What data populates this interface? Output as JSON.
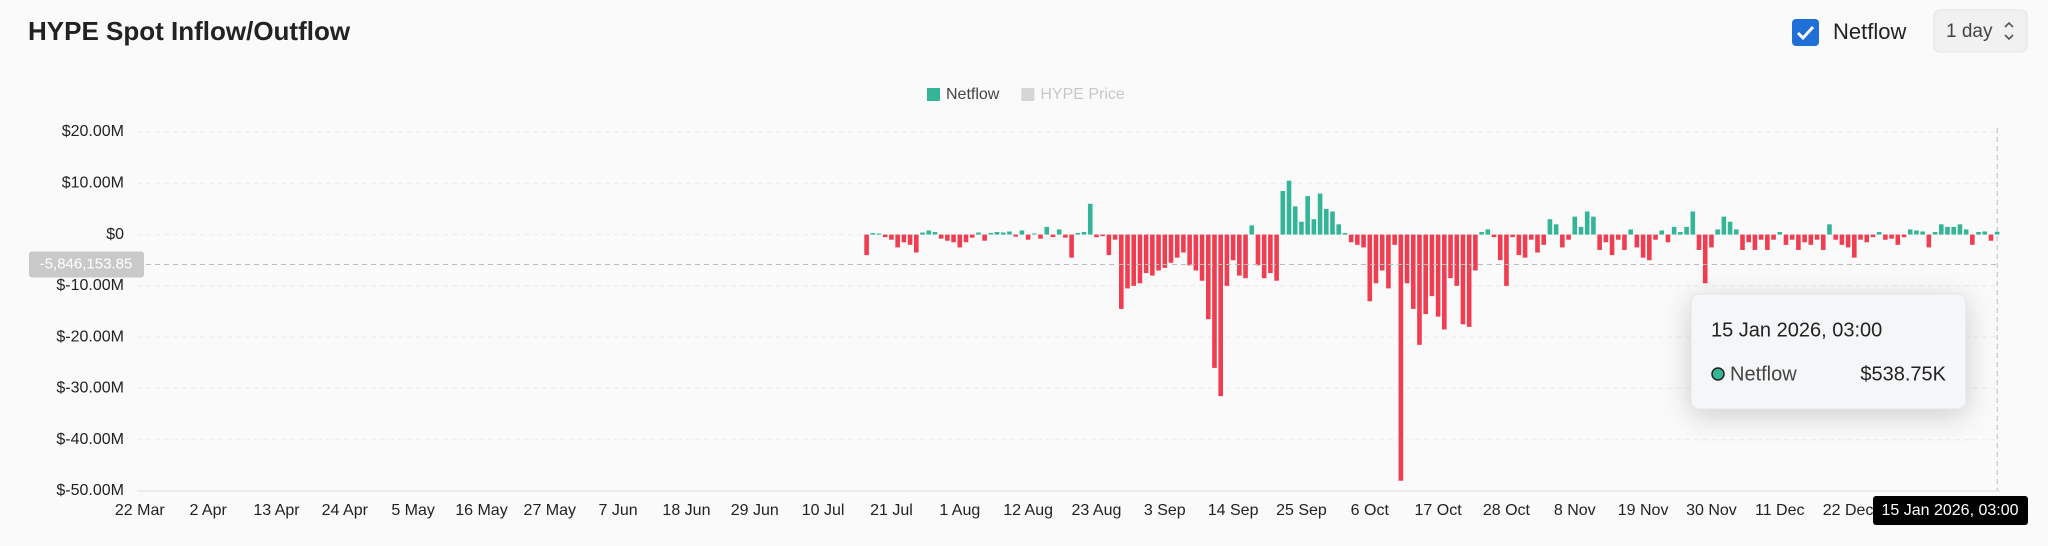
{
  "controls": {
    "interval": "1 day"
  },
  "chart_data": {
    "type": "bar",
    "title": "HYPE Spot Inflow/Outflow",
    "categories": [
      "22 Mar",
      null,
      null,
      null,
      null,
      null,
      null,
      null,
      null,
      null,
      null,
      "2 Apr",
      null,
      null,
      null,
      null,
      null,
      null,
      null,
      null,
      null,
      null,
      "13 Apr",
      null,
      null,
      null,
      null,
      null,
      null,
      null,
      null,
      null,
      null,
      "24 Apr",
      null,
      null,
      null,
      null,
      null,
      null,
      null,
      null,
      null,
      null,
      "5 May",
      null,
      null,
      null,
      null,
      null,
      null,
      null,
      null,
      null,
      null,
      "16 May",
      null,
      null,
      null,
      null,
      null,
      null,
      null,
      null,
      null,
      null,
      "27 May",
      null,
      null,
      null,
      null,
      null,
      null,
      null,
      null,
      null,
      null,
      "7 Jun",
      null,
      null,
      null,
      null,
      null,
      null,
      null,
      null,
      null,
      null,
      "18 Jun",
      null,
      null,
      null,
      null,
      null,
      null,
      null,
      null,
      null,
      null,
      "29 Jun",
      null,
      null,
      null,
      null,
      null,
      null,
      null,
      null,
      null,
      null,
      "10 Jul",
      null,
      null,
      null,
      null,
      null,
      null,
      null,
      null,
      null,
      null,
      "21 Jul",
      null,
      null,
      null,
      null,
      null,
      null,
      null,
      null,
      null,
      null,
      "1 Aug",
      null,
      null,
      null,
      null,
      null,
      null,
      null,
      null,
      null,
      null,
      "12 Aug",
      null,
      null,
      null,
      null,
      null,
      null,
      null,
      null,
      null,
      null,
      "23 Aug",
      null,
      null,
      null,
      null,
      null,
      null,
      null,
      null,
      null,
      null,
      "3 Sep",
      null,
      null,
      null,
      null,
      null,
      null,
      null,
      null,
      null,
      null,
      "14 Sep",
      null,
      null,
      null,
      null,
      null,
      null,
      null,
      null,
      null,
      null,
      "25 Sep",
      null,
      null,
      null,
      null,
      null,
      null,
      null,
      null,
      null,
      null,
      "6 Oct",
      null,
      null,
      null,
      null,
      null,
      null,
      null,
      null,
      null,
      null,
      "17 Oct",
      null,
      null,
      null,
      null,
      null,
      null,
      null,
      null,
      null,
      null,
      "28 Oct",
      null,
      null,
      null,
      null,
      null,
      null,
      null,
      null,
      null,
      null,
      "8 Nov",
      null,
      null,
      null,
      null,
      null,
      null,
      null,
      null,
      null,
      null,
      "19 Nov",
      null,
      null,
      null,
      null,
      null,
      null,
      null,
      null,
      null,
      null,
      "30 Nov",
      null,
      null,
      null,
      null,
      null,
      null,
      null,
      null,
      null,
      null,
      "11 Dec",
      null,
      null,
      null,
      null,
      null,
      null,
      null,
      null,
      null,
      null,
      "22 Dec",
      null,
      null,
      null,
      null,
      null,
      null,
      null,
      null,
      null,
      null,
      null,
      null,
      null,
      null,
      null,
      null,
      null,
      null,
      null,
      null,
      null,
      null,
      null,
      null
    ],
    "series": [
      {
        "name": "Netflow",
        "color": "#35b597",
        "negative_color": "#ef3e51",
        "values": [
          null,
          null,
          null,
          null,
          null,
          null,
          null,
          null,
          null,
          null,
          null,
          null,
          null,
          null,
          null,
          null,
          null,
          null,
          null,
          null,
          null,
          null,
          null,
          null,
          null,
          null,
          null,
          null,
          null,
          null,
          null,
          null,
          null,
          null,
          null,
          null,
          null,
          null,
          null,
          null,
          null,
          null,
          null,
          null,
          null,
          null,
          null,
          null,
          null,
          null,
          null,
          null,
          null,
          null,
          null,
          null,
          null,
          null,
          null,
          null,
          null,
          null,
          null,
          null,
          null,
          null,
          null,
          null,
          null,
          null,
          null,
          null,
          null,
          null,
          null,
          null,
          null,
          null,
          null,
          null,
          null,
          null,
          null,
          null,
          null,
          null,
          null,
          null,
          null,
          null,
          null,
          null,
          null,
          null,
          null,
          null,
          null,
          null,
          null,
          null,
          null,
          null,
          null,
          null,
          null,
          null,
          null,
          null,
          null,
          null,
          null,
          null,
          null,
          null,
          null,
          null,
          null,
          -4000000,
          300000,
          200000,
          -500000,
          -1000000,
          -2500000,
          -1500000,
          -2000000,
          -3500000,
          400000,
          800000,
          500000,
          -800000,
          -1200000,
          -1500000,
          -2500000,
          -1500000,
          -600000,
          400000,
          -1200000,
          300000,
          500000,
          400000,
          600000,
          -400000,
          800000,
          -1000000,
          200000,
          -800000,
          1500000,
          -500000,
          1000000,
          -600000,
          -4500000,
          300000,
          500000,
          6000000,
          -500000,
          -300000,
          -4000000,
          -1000000,
          -14500000,
          -10500000,
          -10000000,
          -9500000,
          -7500000,
          -8000000,
          -7000000,
          -6500000,
          -5500000,
          -4500000,
          -3500000,
          -6000000,
          -7000000,
          -9000000,
          -16500000,
          -26000000,
          -31500000,
          -10000000,
          -5000000,
          -8000000,
          -8500000,
          1800000,
          -6000000,
          -8500000,
          -7500000,
          -9000000,
          8500000,
          10500000,
          5500000,
          2500000,
          7500000,
          3000000,
          8000000,
          5000000,
          4500000,
          2000000,
          300000,
          -1500000,
          -2000000,
          -2500000,
          -13000000,
          -9500000,
          -7000000,
          -10500000,
          -2000000,
          -48000000,
          -9500000,
          -14500000,
          -21500000,
          -15500000,
          -12000000,
          -16000000,
          -18500000,
          -8500000,
          -10000000,
          -17500000,
          -18000000,
          -7000000,
          500000,
          1000000,
          -500000,
          -5000000,
          -10000000,
          -500000,
          -4000000,
          -4500000,
          -1000000,
          -3500000,
          -2000000,
          3000000,
          2000000,
          -2500000,
          -1000000,
          3500000,
          1500000,
          4500000,
          3500000,
          -3000000,
          -1500000,
          -4000000,
          -1000000,
          -3000000,
          1000000,
          -2500000,
          -4500000,
          -5000000,
          -1000000,
          800000,
          -1500000,
          1500000,
          500000,
          1500000,
          4500000,
          -3000000,
          -9500000,
          -2500000,
          1000000,
          3500000,
          2500000,
          1000000,
          -3000000,
          -1500000,
          -3000000,
          -1000000,
          -3000000,
          -1000000,
          500000,
          -2000000,
          -1000000,
          -3000000,
          -1500000,
          -2000000,
          -1000000,
          -3000000,
          2000000,
          -1000000,
          -2000000,
          -2500000,
          -4500000,
          -1000000,
          -1500000,
          -500000,
          500000,
          -1000000,
          -800000,
          -2000000,
          -500000,
          1000000,
          800000,
          600000,
          -2500000,
          500000,
          2000000,
          1500000,
          1500000,
          2000000,
          1000000,
          -2000000,
          500000,
          600000,
          -1200000,
          538750
        ]
      },
      {
        "name": "HYPE Price",
        "color": "#d6d6d6",
        "hidden": true
      }
    ],
    "ylim": [
      -50000000,
      20000000
    ],
    "yticks": [
      {
        "value": 20000000,
        "label": "$20.00M"
      },
      {
        "value": 10000000,
        "label": "$10.00M"
      },
      {
        "value": 0,
        "label": "$0"
      },
      {
        "value": -10000000,
        "label": "$-10.00M"
      },
      {
        "value": -20000000,
        "label": "$-20.00M"
      },
      {
        "value": -30000000,
        "label": "$-30.00M"
      },
      {
        "value": -40000000,
        "label": "$-40.00M"
      },
      {
        "value": -50000000,
        "label": "$-50.00M"
      }
    ],
    "grid": true,
    "crosshair": {
      "value": -5846153.85,
      "label": "-5,846,153.85"
    },
    "tooltip": {
      "x": "15 Jan 2026, 03:00",
      "label": "$538.75K"
    }
  }
}
